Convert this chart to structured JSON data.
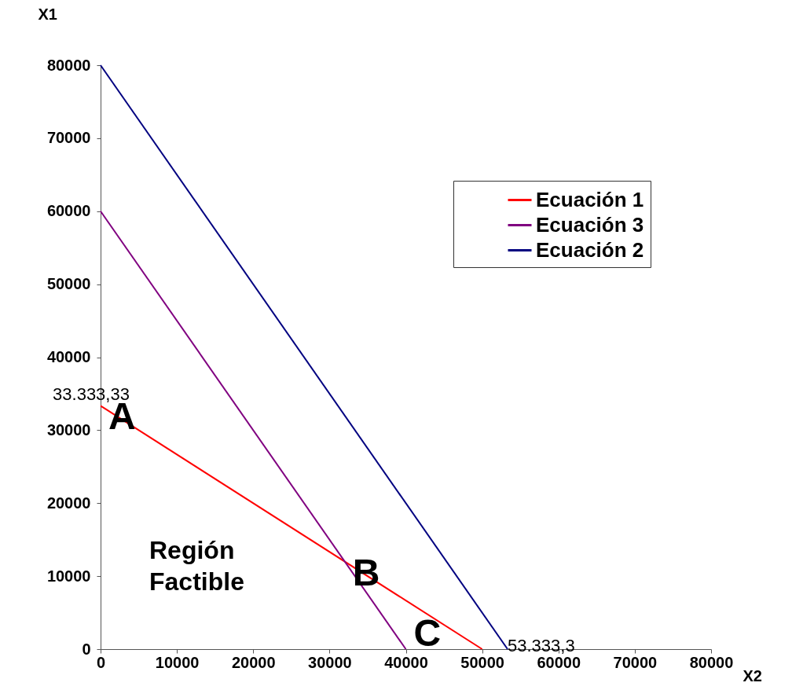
{
  "chart_data": {
    "type": "line",
    "xlabel": "X2",
    "ylabel": "X1",
    "series": [
      {
        "name": "Ecuación 1",
        "color": "#ff0000",
        "x": [
          0,
          50000
        ],
        "values": [
          33333,
          0
        ]
      },
      {
        "name": "Ecuación 3",
        "color": "#800080",
        "x": [
          0,
          40000
        ],
        "values": [
          60000,
          0
        ]
      },
      {
        "name": "Ecuación 2",
        "color": "#000080",
        "x": [
          0,
          53333
        ],
        "values": [
          80000,
          0
        ]
      }
    ],
    "xlim": [
      0,
      80000
    ],
    "xticks": [
      0,
      10000,
      20000,
      30000,
      40000,
      50000,
      60000,
      70000,
      80000
    ],
    "ylim": [
      0,
      80000
    ],
    "yticks": [
      0,
      10000,
      20000,
      30000,
      40000,
      50000,
      60000,
      70000,
      80000
    ],
    "legend": "top right",
    "marker": "none",
    "line_style": "solid",
    "annotations": [
      {
        "text": "33.333,33",
        "x": 0,
        "y": 33333
      },
      {
        "text": "A",
        "x": 0,
        "y": 33333
      },
      {
        "text": "B",
        "x": 32000,
        "y": 12000
      },
      {
        "text": "C",
        "x": 40000,
        "y": 0
      },
      {
        "text": "53.333,3",
        "x": 53333,
        "y": 0
      },
      "Región Factible"
    ]
  }
}
